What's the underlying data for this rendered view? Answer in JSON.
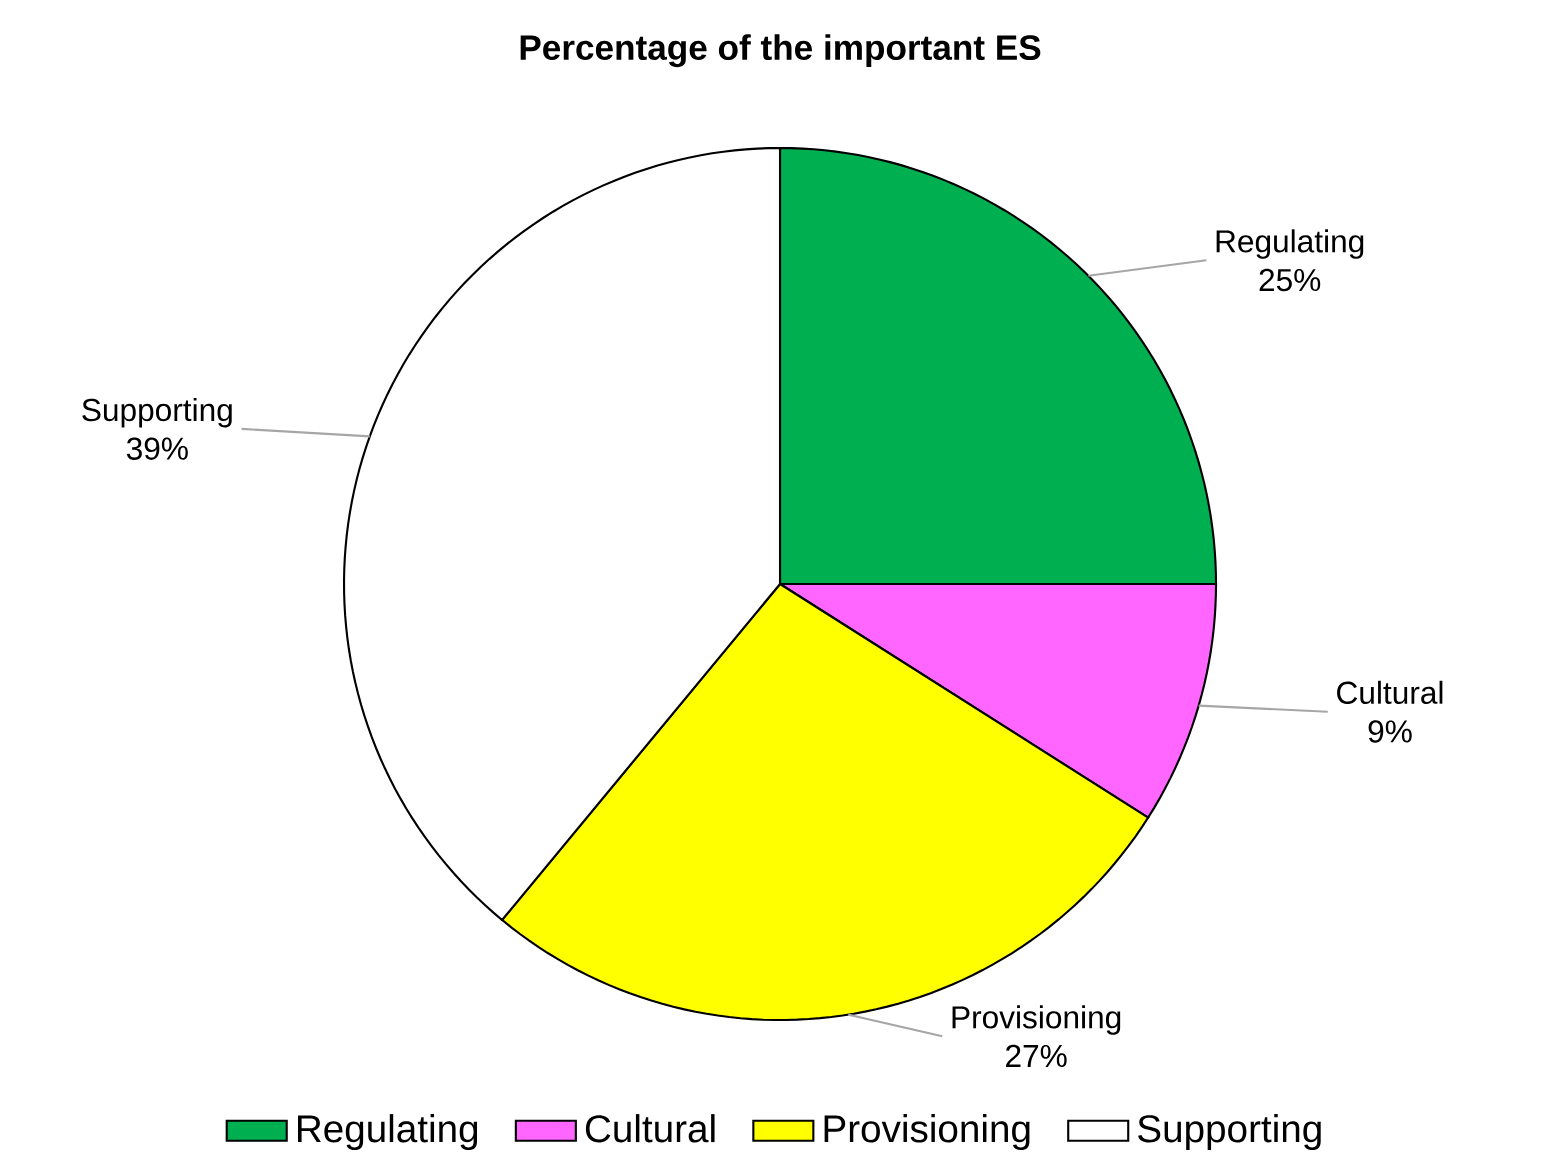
{
  "chart_data": {
    "type": "pie",
    "title": "Percentage of the important ES",
    "categories": [
      "Regulating",
      "Cultural",
      "Provisioning",
      "Supporting"
    ],
    "values": [
      25,
      9,
      27,
      39
    ],
    "value_labels": [
      "25%",
      "9%",
      "27%",
      "39%"
    ],
    "colors": [
      "#00b050",
      "#ff66ff",
      "#ffff00",
      "#ffffff"
    ],
    "legend": "bottom"
  }
}
